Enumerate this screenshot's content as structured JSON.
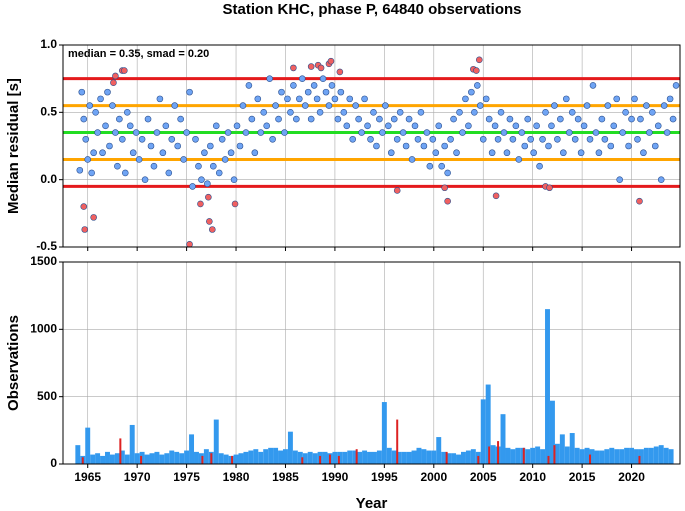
{
  "chart_data": [
    {
      "type": "scatter",
      "title": "Station KHC, phase P, 64840 observations",
      "annotation": "median = 0.35, smad = 0.20",
      "ylabel": "Median residual [s]",
      "xlim": [
        1962.5,
        2024.9
      ],
      "ylim": [
        -0.5,
        1.0
      ],
      "yticks": [
        -0.5,
        {
          "value": 0,
          "label": "0.0"
        },
        0.5,
        {
          "value": 1,
          "label": "1.0"
        }
      ],
      "grid": true,
      "hlines": [
        {
          "value": 0.75,
          "color": "#e41a1c"
        },
        {
          "value": 0.55,
          "color": "#ffa500"
        },
        {
          "value": 0.35,
          "color": "#22dd22"
        },
        {
          "value": 0.15,
          "color": "#ffa500"
        },
        {
          "value": -0.05,
          "color": "#e41a1c"
        }
      ],
      "series": [
        {
          "color": "#6fa4f4",
          "x": [
            1964.2,
            1964.4,
            1964.6,
            1964.8,
            1965.0,
            1965.2,
            1965.4,
            1965.6,
            1965.8,
            1966.0,
            1966.3,
            1966.5,
            1966.8,
            1967.0,
            1967.2,
            1967.5,
            1967.8,
            1968.0,
            1968.2,
            1968.5,
            1968.8,
            1969.0,
            1969.3,
            1969.6,
            1969.9,
            1970.2,
            1970.5,
            1970.8,
            1971.1,
            1971.4,
            1971.7,
            1972.0,
            1972.3,
            1972.6,
            1972.9,
            1973.2,
            1973.5,
            1973.8,
            1974.1,
            1974.4,
            1974.7,
            1975.0,
            1975.3,
            1975.6,
            1975.9,
            1976.2,
            1976.5,
            1976.8,
            1977.1,
            1977.4,
            1977.7,
            1978.0,
            1978.3,
            1978.6,
            1978.9,
            1979.2,
            1979.5,
            1979.8,
            1980.1,
            1980.4,
            1980.7,
            1981.0,
            1981.3,
            1981.6,
            1981.9,
            1982.2,
            1982.5,
            1982.8,
            1983.1,
            1983.4,
            1983.7,
            1984.0,
            1984.3,
            1984.6,
            1984.9,
            1985.2,
            1985.5,
            1985.8,
            1986.1,
            1986.4,
            1986.7,
            1987.0,
            1987.3,
            1987.6,
            1987.9,
            1988.2,
            1988.5,
            1988.8,
            1989.1,
            1989.4,
            1989.7,
            1990.0,
            1990.3,
            1990.6,
            1990.9,
            1991.2,
            1991.5,
            1991.8,
            1992.1,
            1992.4,
            1992.7,
            1993.0,
            1993.3,
            1993.6,
            1993.9,
            1994.2,
            1994.5,
            1994.8,
            1995.1,
            1995.4,
            1995.7,
            1996.0,
            1996.3,
            1996.6,
            1996.9,
            1997.2,
            1997.5,
            1997.8,
            1998.1,
            1998.4,
            1998.7,
            1999.0,
            1999.3,
            1999.6,
            1999.9,
            2000.2,
            2000.5,
            2000.8,
            2001.1,
            2001.4,
            2001.7,
            2002.0,
            2002.3,
            2002.6,
            2002.9,
            2003.2,
            2003.5,
            2003.8,
            2004.1,
            2004.4,
            2004.7,
            2005.0,
            2005.3,
            2005.6,
            2005.9,
            2006.2,
            2006.5,
            2006.8,
            2007.1,
            2007.4,
            2007.7,
            2008.0,
            2008.3,
            2008.6,
            2008.9,
            2009.2,
            2009.5,
            2009.8,
            2010.1,
            2010.4,
            2010.7,
            2011.0,
            2011.3,
            2011.6,
            2011.9,
            2012.2,
            2012.5,
            2012.8,
            2013.1,
            2013.4,
            2013.7,
            2014.0,
            2014.3,
            2014.6,
            2014.9,
            2015.2,
            2015.5,
            2015.8,
            2016.1,
            2016.4,
            2016.7,
            2017.0,
            2017.3,
            2017.6,
            2017.9,
            2018.2,
            2018.5,
            2018.8,
            2019.1,
            2019.4,
            2019.7,
            2020.0,
            2020.3,
            2020.6,
            2020.9,
            2021.2,
            2021.5,
            2021.8,
            2022.1,
            2022.4,
            2022.7,
            2023.0,
            2023.3,
            2023.6,
            2023.9,
            2024.2,
            2024.5
          ],
          "values": [
            0.07,
            0.65,
            0.45,
            0.3,
            0.15,
            0.55,
            0.05,
            0.2,
            0.5,
            0.35,
            0.6,
            0.2,
            0.4,
            0.65,
            0.25,
            0.55,
            0.35,
            0.1,
            0.45,
            0.3,
            0.05,
            0.5,
            0.4,
            0.2,
            0.35,
            0.15,
            0.3,
            0.0,
            0.45,
            0.25,
            0.1,
            0.35,
            0.6,
            0.2,
            0.4,
            0.05,
            0.3,
            0.55,
            0.25,
            0.45,
            0.15,
            0.35,
            0.65,
            -0.05,
            0.3,
            0.1,
            0.0,
            0.2,
            -0.03,
            0.25,
            0.1,
            0.4,
            0.05,
            0.3,
            0.15,
            0.35,
            0.2,
            0.0,
            0.4,
            0.25,
            0.55,
            0.35,
            0.7,
            0.45,
            0.2,
            0.6,
            0.35,
            0.5,
            0.4,
            0.75,
            0.3,
            0.55,
            0.45,
            0.65,
            0.35,
            0.6,
            0.5,
            0.7,
            0.45,
            0.6,
            0.75,
            0.55,
            0.65,
            0.45,
            0.7,
            0.6,
            0.5,
            0.75,
            0.65,
            0.55,
            0.7,
            0.6,
            0.45,
            0.65,
            0.5,
            0.4,
            0.6,
            0.3,
            0.55,
            0.45,
            0.35,
            0.6,
            0.4,
            0.3,
            0.5,
            0.25,
            0.45,
            0.35,
            0.55,
            0.4,
            0.2,
            0.45,
            0.3,
            0.5,
            0.35,
            0.25,
            0.45,
            0.15,
            0.4,
            0.3,
            0.5,
            0.25,
            0.35,
            0.1,
            0.3,
            0.2,
            0.4,
            0.1,
            0.25,
            0.05,
            0.3,
            0.45,
            0.2,
            0.5,
            0.35,
            0.6,
            0.4,
            0.65,
            0.5,
            0.7,
            0.55,
            0.3,
            0.6,
            0.45,
            0.2,
            0.4,
            0.3,
            0.5,
            0.35,
            0.2,
            0.45,
            0.3,
            0.4,
            0.15,
            0.35,
            0.25,
            0.45,
            0.3,
            0.2,
            0.4,
            0.1,
            0.3,
            0.5,
            0.25,
            0.4,
            0.55,
            0.3,
            0.45,
            0.2,
            0.6,
            0.35,
            0.5,
            0.3,
            0.45,
            0.2,
            0.4,
            0.55,
            0.3,
            0.7,
            0.35,
            0.2,
            0.45,
            0.3,
            0.55,
            0.25,
            0.4,
            0.6,
            0.0,
            0.35,
            0.5,
            0.25,
            0.45,
            0.6,
            0.3,
            0.45,
            0.2,
            0.55,
            0.35,
            0.5,
            0.25,
            0.4,
            0.0,
            0.55,
            0.35,
            0.6,
            0.45,
            0.7
          ]
        },
        {
          "color": "#f06060",
          "x": [
            1964.6,
            1964.7,
            1965.6,
            1967.6,
            1967.8,
            1968.5,
            1968.7,
            1975.3,
            1976.4,
            1977.2,
            1977.3,
            1977.6,
            1979.9,
            1985.8,
            1987.6,
            1988.3,
            1988.6,
            1989.4,
            1989.6,
            1990.5,
            1996.3,
            2001.1,
            2001.4,
            2004.0,
            2004.3,
            2004.6,
            2006.3,
            2011.3,
            2011.7,
            2020.8
          ],
          "values": [
            -0.2,
            -0.37,
            -0.28,
            0.72,
            0.77,
            0.81,
            0.81,
            -0.48,
            -0.18,
            -0.13,
            -0.31,
            -0.37,
            -0.18,
            0.83,
            0.84,
            0.85,
            0.83,
            0.86,
            0.88,
            0.8,
            -0.08,
            -0.06,
            -0.16,
            0.82,
            0.81,
            0.89,
            -0.12,
            -0.05,
            -0.06,
            -0.16
          ]
        }
      ]
    },
    {
      "type": "bar",
      "ylabel": "Observations",
      "xlabel": "Year",
      "xlim": [
        1962.5,
        2024.9
      ],
      "xticks": [
        1965,
        1970,
        1975,
        1980,
        1985,
        1990,
        1995,
        2000,
        2005,
        2010,
        2015,
        2020
      ],
      "ylim": [
        0,
        1500
      ],
      "yticks": [
        0,
        500,
        1000,
        1500
      ],
      "grid": true,
      "series": [
        {
          "color": "#3399ee",
          "x": [
            1964.0,
            1964.5,
            1965.0,
            1965.5,
            1966.0,
            1966.5,
            1967.0,
            1967.5,
            1968.0,
            1968.5,
            1969.0,
            1969.5,
            1970.0,
            1970.5,
            1971.0,
            1971.5,
            1972.0,
            1972.5,
            1973.0,
            1973.5,
            1974.0,
            1974.5,
            1975.0,
            1975.5,
            1976.0,
            1976.5,
            1977.0,
            1977.5,
            1978.0,
            1978.5,
            1979.0,
            1979.5,
            1980.0,
            1980.5,
            1981.0,
            1981.5,
            1982.0,
            1982.5,
            1983.0,
            1983.5,
            1984.0,
            1984.5,
            1985.0,
            1985.5,
            1986.0,
            1986.5,
            1987.0,
            1987.5,
            1988.0,
            1988.5,
            1989.0,
            1989.5,
            1990.0,
            1990.5,
            1991.0,
            1991.5,
            1992.0,
            1992.5,
            1993.0,
            1993.5,
            1994.0,
            1994.5,
            1995.0,
            1995.5,
            1996.0,
            1996.5,
            1997.0,
            1997.5,
            1998.0,
            1998.5,
            1999.0,
            1999.5,
            2000.0,
            2000.5,
            2001.0,
            2001.5,
            2002.0,
            2002.5,
            2003.0,
            2003.5,
            2004.0,
            2004.5,
            2005.0,
            2005.5,
            2006.0,
            2006.5,
            2007.0,
            2007.5,
            2008.0,
            2008.5,
            2009.0,
            2009.5,
            2010.0,
            2010.5,
            2011.0,
            2011.5,
            2012.0,
            2012.5,
            2013.0,
            2013.5,
            2014.0,
            2014.5,
            2015.0,
            2015.5,
            2016.0,
            2016.5,
            2017.0,
            2017.5,
            2018.0,
            2018.5,
            2019.0,
            2019.5,
            2020.0,
            2020.5,
            2021.0,
            2021.5,
            2022.0,
            2022.5,
            2023.0,
            2023.5,
            2024.0
          ],
          "values": [
            140,
            60,
            270,
            70,
            80,
            60,
            90,
            70,
            80,
            100,
            70,
            290,
            80,
            90,
            70,
            80,
            90,
            70,
            80,
            100,
            90,
            80,
            100,
            220,
            90,
            80,
            110,
            90,
            330,
            80,
            70,
            60,
            70,
            80,
            90,
            100,
            110,
            90,
            110,
            120,
            120,
            100,
            110,
            240,
            100,
            90,
            80,
            90,
            80,
            90,
            90,
            80,
            90,
            90,
            90,
            100,
            100,
            90,
            100,
            90,
            90,
            100,
            460,
            120,
            100,
            90,
            90,
            90,
            100,
            120,
            110,
            100,
            100,
            200,
            90,
            80,
            80,
            70,
            90,
            100,
            110,
            90,
            480,
            590,
            140,
            130,
            370,
            120,
            110,
            120,
            120,
            110,
            120,
            130,
            110,
            1150,
            470,
            150,
            220,
            130,
            230,
            120,
            110,
            120,
            110,
            100,
            100,
            110,
            120,
            110,
            110,
            120,
            120,
            110,
            110,
            120,
            120,
            130,
            140,
            120,
            110
          ]
        },
        {
          "color": "#dd2222",
          "x": [
            1964.5,
            1968.3,
            1970.4,
            1976.6,
            1977.5,
            1979.6,
            1986.7,
            1988.5,
            1989.5,
            1990.4,
            1992.2,
            1996.3,
            2001.3,
            2004.5,
            2005.6,
            2006.5,
            2009.1,
            2011.6,
            2012.2,
            2015.8,
            2020.8
          ],
          "values": [
            50,
            190,
            60,
            60,
            80,
            60,
            50,
            60,
            70,
            60,
            110,
            330,
            90,
            60,
            130,
            170,
            120,
            60,
            140,
            70,
            60
          ]
        }
      ]
    }
  ]
}
